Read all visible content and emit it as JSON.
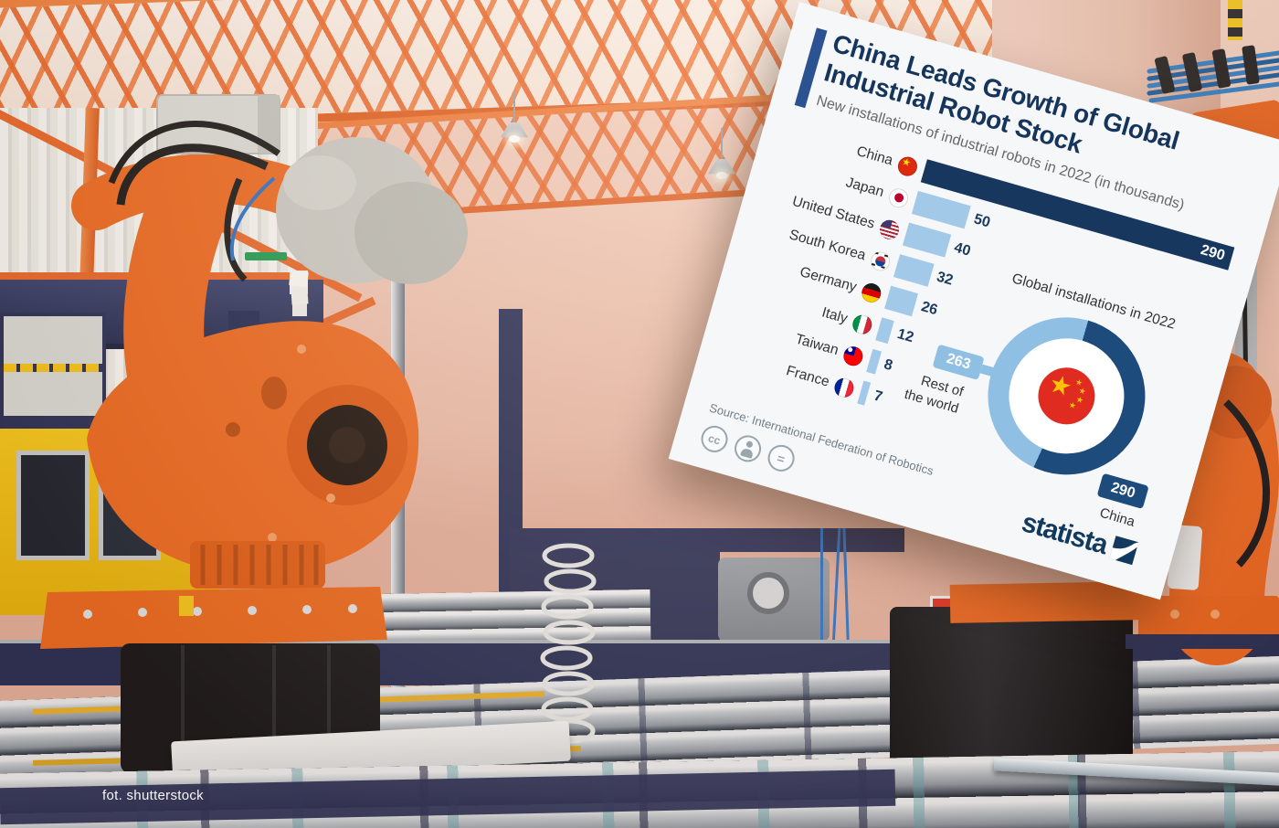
{
  "photo_credit": "fot. shutterstock",
  "card": {
    "title_line1": "China Leads Growth of Global",
    "title_line2": "Industrial Robot Stock",
    "subtitle": "New installations of industrial robots in 2022 (in thousands)",
    "source": "Source: International Federation of Robotics",
    "brand": "statista",
    "license": {
      "cc": "cc",
      "nd": "="
    },
    "donut_heading": "Global installations in 2022",
    "donut_left_label": "Rest of the world",
    "donut_right_label": "China",
    "colors": {
      "navy": "#17375e",
      "accent_bar": "#2b5392",
      "light_blue": "#a3c9e8",
      "donut_dark": "#1d4b7c",
      "donut_light": "#8fc0e4",
      "card_bg": "#f6f7f8",
      "robot_orange": "#e8641e"
    }
  },
  "chart_data": [
    {
      "type": "bar",
      "orientation": "horizontal",
      "title": "New installations of industrial robots in 2022 (in thousands)",
      "categories": [
        "China",
        "Japan",
        "United States",
        "South Korea",
        "Germany",
        "Italy",
        "Taiwan",
        "France"
      ],
      "values": [
        290,
        50,
        40,
        32,
        26,
        12,
        8,
        7
      ],
      "flags": [
        "cn",
        "jp",
        "us",
        "kr",
        "de",
        "it",
        "tw",
        "fr"
      ],
      "xlim": [
        0,
        290
      ],
      "highlight_index": 0,
      "value_labels_shown": true,
      "grid": false
    },
    {
      "type": "pie",
      "subtype": "donut",
      "title": "Global installations in 2022",
      "labels": [
        "China",
        "Rest of the world"
      ],
      "values": [
        290,
        263
      ],
      "colors": [
        "#1d4b7c",
        "#8fc0e4"
      ],
      "center_icon": "china-flag",
      "legend_position": "outside"
    }
  ]
}
